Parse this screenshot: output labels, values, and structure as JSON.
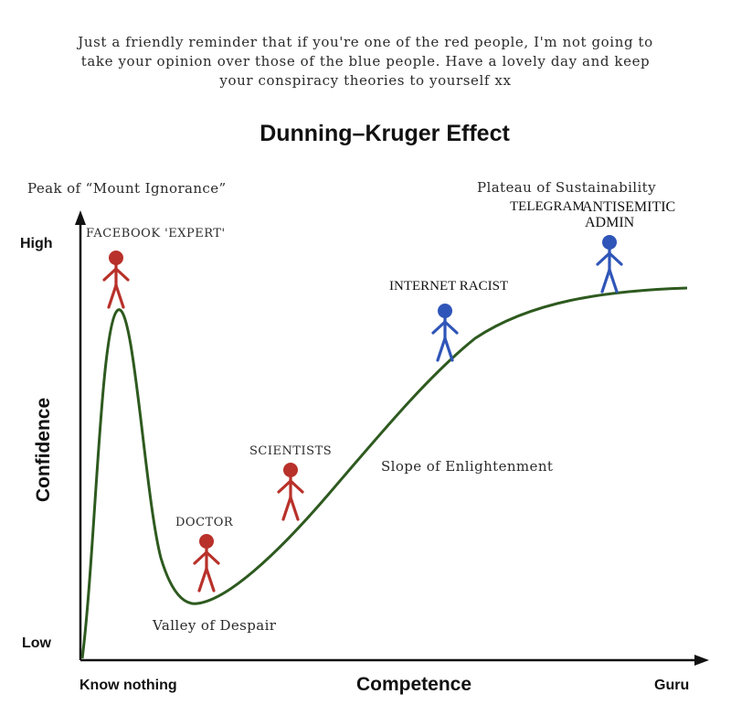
{
  "caption": {
    "lines": [
      "Just a friendly reminder that if you're one of the red people, I'm not going to",
      "take your opinion over those of the blue people. Have a lovely day and keep",
      "your conspiracy theories to yourself xx"
    ]
  },
  "diagram": {
    "title": "Dunning–Kruger Effect",
    "y_axis": {
      "title": "Confidence",
      "high": "High",
      "low": "Low"
    },
    "x_axis": {
      "title": "Competence",
      "start": "Know nothing",
      "end": "Guru"
    },
    "stage_labels": {
      "peak": "Peak of “Mount Ignorance”",
      "valley": "Valley of Despair",
      "slope": "Slope of Enlightenment",
      "plateau": "Plateau of Sustainability"
    },
    "figures": [
      {
        "label": "FACEBOOK 'EXPERT'",
        "color": "red"
      },
      {
        "label": "DOCTOR",
        "color": "red"
      },
      {
        "label": "SCIENTISTS",
        "color": "red"
      },
      {
        "label": "INTERNET RACIST",
        "color": "blue"
      },
      {
        "label": "TELEGRAM",
        "color": "blue"
      }
    ],
    "overlay_label": {
      "line1": "ANTISEMITIC",
      "line2": "ADMIN"
    },
    "colors": {
      "red": "#b8312a",
      "blue": "#2f55b8",
      "curve": "#2e5a1f",
      "axis": "#111111"
    }
  }
}
